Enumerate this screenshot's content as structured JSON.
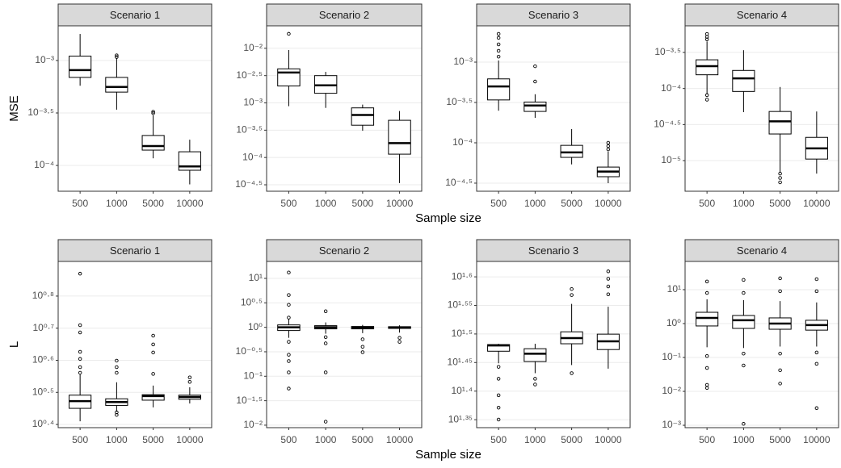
{
  "chart_data": [
    {
      "type": "box",
      "title": "Scenario 1",
      "ylabel": "MSE",
      "xlabel": "Sample size",
      "ylog": true,
      "grid": true,
      "categories": [
        "500",
        "1000",
        "5000",
        "10000"
      ],
      "ylim": [
        5.68e-05,
        0.00214
      ],
      "yticks": [
        {
          "value": 0.001,
          "label": "10⁻³"
        },
        {
          "value": 0.00031623,
          "label": "10⁻³·⁵"
        },
        {
          "value": 0.0001,
          "label": "10⁻⁴"
        }
      ],
      "boxes": [
        {
          "whislo": 0.000575,
          "q1": 0.00069,
          "med": 0.00081,
          "q3": 0.0011,
          "whishi": 0.00179,
          "fliers": []
        },
        {
          "whislo": 0.00034,
          "q1": 0.0005,
          "med": 0.00056,
          "q3": 0.00069,
          "whishi": 0.00105,
          "fliers": [
            0.00112,
            0.00108
          ]
        },
        {
          "whislo": 0.000117,
          "q1": 0.00014,
          "med": 0.000153,
          "q3": 0.000193,
          "whishi": 0.0003,
          "fliers": [
            0.000325,
            0.000315
          ]
        },
        {
          "whislo": 6.6e-05,
          "q1": 9e-05,
          "med": 9.8e-05,
          "q3": 0.000135,
          "whishi": 0.000176,
          "fliers": []
        }
      ]
    },
    {
      "type": "box",
      "title": "Scenario 2",
      "ylog": true,
      "grid": true,
      "categories": [
        "500",
        "1000",
        "5000",
        "10000"
      ],
      "ylim": [
        2.41e-05,
        0.0258
      ],
      "yticks": [
        {
          "value": 0.01,
          "label": "10⁻²"
        },
        {
          "value": 0.0031623,
          "label": "10⁻²·⁵"
        },
        {
          "value": 0.001,
          "label": "10⁻³"
        },
        {
          "value": 0.00031623,
          "label": "10⁻³·⁵"
        },
        {
          "value": 0.0001,
          "label": "10⁻⁴"
        },
        {
          "value": 3.1623e-05,
          "label": "10⁻⁴·⁵"
        }
      ],
      "boxes": [
        {
          "whislo": 0.00087,
          "q1": 0.00204,
          "med": 0.0036,
          "q3": 0.0042,
          "whishi": 0.0093,
          "fliers": [
            0.0184
          ]
        },
        {
          "whislo": 0.00081,
          "q1": 0.0015,
          "med": 0.0021,
          "q3": 0.00316,
          "whishi": 0.0037,
          "fliers": []
        },
        {
          "whislo": 0.00031,
          "q1": 0.00039,
          "med": 0.0006,
          "q3": 0.00081,
          "whishi": 0.00093,
          "fliers": []
        },
        {
          "whislo": 3.4e-05,
          "q1": 0.000115,
          "med": 0.000183,
          "q3": 0.00048,
          "whishi": 0.00071,
          "fliers": []
        }
      ]
    },
    {
      "type": "box",
      "title": "Scenario 3",
      "ylog": true,
      "grid": true,
      "categories": [
        "500",
        "1000",
        "5000",
        "10000"
      ],
      "ylim": [
        2.51e-05,
        0.00282
      ],
      "yticks": [
        {
          "value": 0.001,
          "label": "10⁻³"
        },
        {
          "value": 0.00031623,
          "label": "10⁻³·⁵"
        },
        {
          "value": 0.0001,
          "label": "10⁻⁴"
        },
        {
          "value": 3.1623e-05,
          "label": "10⁻⁴·⁵"
        }
      ],
      "boxes": [
        {
          "whislo": 0.00025,
          "q1": 0.00034,
          "med": 0.0005,
          "q3": 0.00062,
          "whishi": 0.00105,
          "fliers": [
            0.00224,
            0.002,
            0.00166,
            0.00138,
            0.00117
          ]
        },
        {
          "whislo": 0.000204,
          "q1": 0.000245,
          "med": 0.00029,
          "q3": 0.00032,
          "whishi": 0.0004,
          "fliers": [
            0.00089,
            0.000575
          ]
        },
        {
          "whislo": 5.4e-05,
          "q1": 6.6e-05,
          "med": 7.6e-05,
          "q3": 9.3e-05,
          "whishi": 0.000148,
          "fliers": []
        },
        {
          "whislo": 3.16e-05,
          "q1": 3.8e-05,
          "med": 4.4e-05,
          "q3": 5e-05,
          "whishi": 7.8e-05,
          "fliers": [
            0.0001,
            9.1e-05,
            8.3e-05
          ]
        }
      ]
    },
    {
      "type": "box",
      "title": "Scenario 4",
      "ylog": true,
      "grid": true,
      "categories": [
        "500",
        "1000",
        "5000",
        "10000"
      ],
      "ylim": [
        3.76e-06,
        0.00074
      ],
      "yticks": [
        {
          "value": 0.00031623,
          "label": "10⁻³·⁵"
        },
        {
          "value": 0.0001,
          "label": "10⁻⁴"
        },
        {
          "value": 3.1623e-05,
          "label": "10⁻⁴·⁵"
        },
        {
          "value": 1e-05,
          "label": "10⁻⁵"
        }
      ],
      "boxes": [
        {
          "whislo": 8.3e-05,
          "q1": 0.000155,
          "med": 0.000204,
          "q3": 0.00025,
          "whishi": 0.00045,
          "fliers": [
            0.00057,
            0.00052,
            0.00048,
            8.1e-05,
            7e-05
          ]
        },
        {
          "whislo": 4.7e-05,
          "q1": 9.1e-05,
          "med": 0.000138,
          "q3": 0.000178,
          "whishi": 0.00034,
          "fliers": []
        },
        {
          "whislo": 6.9e-06,
          "q1": 2.34e-05,
          "med": 3.5e-05,
          "q3": 4.8e-05,
          "whishi": 0.000105,
          "fliers": [
            6.6e-06,
            5.75e-06,
            5e-06
          ]
        },
        {
          "whislo": 6.6e-06,
          "q1": 1.05e-05,
          "med": 1.48e-05,
          "q3": 2.1e-05,
          "whishi": 4.8e-05,
          "fliers": []
        }
      ]
    },
    {
      "type": "box",
      "title": "Scenario 1",
      "ylabel": "L",
      "xlabel": "Sample size",
      "ylog": true,
      "grid": true,
      "categories": [
        "500",
        "1000",
        "5000",
        "10000"
      ],
      "ylim": [
        2.455,
        8.09
      ],
      "yticks": [
        {
          "value": 6.3096,
          "label": "10⁰·⁸"
        },
        {
          "value": 5.0119,
          "label": "10⁰·⁷"
        },
        {
          "value": 3.9811,
          "label": "10⁰·⁶"
        },
        {
          "value": 3.1623,
          "label": "10⁰·⁵"
        },
        {
          "value": 2.5119,
          "label": "10⁰·⁴"
        }
      ],
      "boxes": [
        {
          "whislo": 2.57,
          "q1": 2.82,
          "med": 2.97,
          "q3": 3.1,
          "whishi": 3.6,
          "fliers": [
            7.41,
            5.12,
            4.86,
            4.23,
            4.02,
            3.79,
            3.64
          ]
        },
        {
          "whislo": 2.75,
          "q1": 2.88,
          "med": 2.95,
          "q3": 3.02,
          "whishi": 3.4,
          "fliers": [
            3.97,
            3.79,
            3.64,
            2.74,
            2.69
          ]
        },
        {
          "whislo": 2.84,
          "q1": 2.99,
          "med": 3.08,
          "q3": 3.11,
          "whishi": 3.32,
          "fliers": [
            4.75,
            4.46,
            4.21,
            3.61
          ]
        },
        {
          "whislo": 2.92,
          "q1": 3.01,
          "med": 3.06,
          "q3": 3.1,
          "whishi": 3.28,
          "fliers": [
            3.52,
            3.41
          ]
        }
      ]
    },
    {
      "type": "box",
      "title": "Scenario 2",
      "ylog": true,
      "grid": true,
      "categories": [
        "500",
        "1000",
        "5000",
        "10000"
      ],
      "ylim": [
        0.0089,
        22.2
      ],
      "yticks": [
        {
          "value": 10,
          "label": "10¹"
        },
        {
          "value": 3.1623,
          "label": "10⁰·⁵"
        },
        {
          "value": 1,
          "label": "10⁰"
        },
        {
          "value": 0.31623,
          "label": "10⁻⁰·⁵"
        },
        {
          "value": 0.1,
          "label": "10⁻¹"
        },
        {
          "value": 0.031623,
          "label": "10⁻¹·⁵"
        },
        {
          "value": 0.01,
          "label": "10⁻²"
        }
      ],
      "boxes": [
        {
          "whislo": 0.61,
          "q1": 0.86,
          "med": 1.0,
          "q3": 1.12,
          "whishi": 1.46,
          "fliers": [
            13.2,
            4.57,
            2.89,
            1.58,
            0.505,
            0.275,
            0.204,
            0.12,
            0.056
          ]
        },
        {
          "whislo": 0.74,
          "q1": 0.93,
          "med": 1.0,
          "q3": 1.08,
          "whishi": 1.26,
          "fliers": [
            2.13,
            0.63,
            0.47,
            0.12,
            0.0118
          ]
        },
        {
          "whislo": 0.76,
          "q1": 0.93,
          "med": 0.98,
          "q3": 1.04,
          "whishi": 1.12,
          "fliers": [
            0.57,
            0.4,
            0.31
          ]
        },
        {
          "whislo": 0.78,
          "q1": 0.95,
          "med": 0.99,
          "q3": 1.03,
          "whishi": 1.1,
          "fliers": [
            0.61,
            0.505
          ]
        }
      ]
    },
    {
      "type": "box",
      "title": "Scenario 3",
      "ylog": true,
      "grid": true,
      "categories": [
        "500",
        "1000",
        "5000",
        "10000"
      ],
      "ylim": [
        21.68,
        42.36
      ],
      "yticks": [
        {
          "value": 39.811,
          "label": "10¹·⁶"
        },
        {
          "value": 35.481,
          "label": "10¹·⁵⁵"
        },
        {
          "value": 31.623,
          "label": "10¹·⁵"
        },
        {
          "value": 28.184,
          "label": "10¹·⁴⁵"
        },
        {
          "value": 25.119,
          "label": "10¹·⁴"
        },
        {
          "value": 22.387,
          "label": "10¹·³⁵"
        }
      ],
      "boxes": [
        {
          "whislo": 28.1,
          "q1": 29.5,
          "med": 30.2,
          "q3": 30.3,
          "whishi": 30.4,
          "fliers": [
            27.7,
            26.4,
            24.7,
            23.5,
            22.4
          ]
        },
        {
          "whislo": 27.0,
          "q1": 28.3,
          "med": 29.2,
          "q3": 29.8,
          "whishi": 30.4,
          "fliers": [
            26.4,
            25.8
          ]
        },
        {
          "whislo": 27.9,
          "q1": 30.4,
          "med": 31.1,
          "q3": 31.9,
          "whishi": 35.7,
          "fliers": [
            37.9,
            37.0,
            27.0
          ]
        },
        {
          "whislo": 27.5,
          "q1": 29.7,
          "med": 30.7,
          "q3": 31.6,
          "whishi": 35.3,
          "fliers": [
            40.7,
            39.5,
            38.3,
            37.1
          ]
        }
      ]
    },
    {
      "type": "box",
      "title": "Scenario 4",
      "ylog": true,
      "grid": true,
      "categories": [
        "500",
        "1000",
        "5000",
        "10000"
      ],
      "ylim": [
        0.00085,
        68
      ],
      "yticks": [
        {
          "value": 10,
          "label": "10¹"
        },
        {
          "value": 1,
          "label": "10⁰"
        },
        {
          "value": 0.1,
          "label": "10⁻¹"
        },
        {
          "value": 0.01,
          "label": "10⁻²"
        },
        {
          "value": 0.001,
          "label": "10⁻³"
        }
      ],
      "boxes": [
        {
          "whislo": 0.2,
          "q1": 0.85,
          "med": 1.47,
          "q3": 2.15,
          "whishi": 5.2,
          "fliers": [
            17.4,
            8.0,
            0.11,
            0.049,
            0.0155,
            0.0126
          ]
        },
        {
          "whislo": 0.19,
          "q1": 0.72,
          "med": 1.25,
          "q3": 1.73,
          "whishi": 4.9,
          "fliers": [
            19.4,
            8.0,
            0.13,
            0.058,
            0.0011
          ]
        },
        {
          "whislo": 0.21,
          "q1": 0.68,
          "med": 1.0,
          "q3": 1.47,
          "whishi": 4.6,
          "fliers": [
            21.6,
            9.0,
            0.13,
            0.042,
            0.017
          ]
        },
        {
          "whislo": 0.21,
          "q1": 0.64,
          "med": 0.9,
          "q3": 1.25,
          "whishi": 4.2,
          "fliers": [
            20.4,
            9.0,
            0.14,
            0.065,
            0.0032
          ]
        }
      ]
    }
  ]
}
